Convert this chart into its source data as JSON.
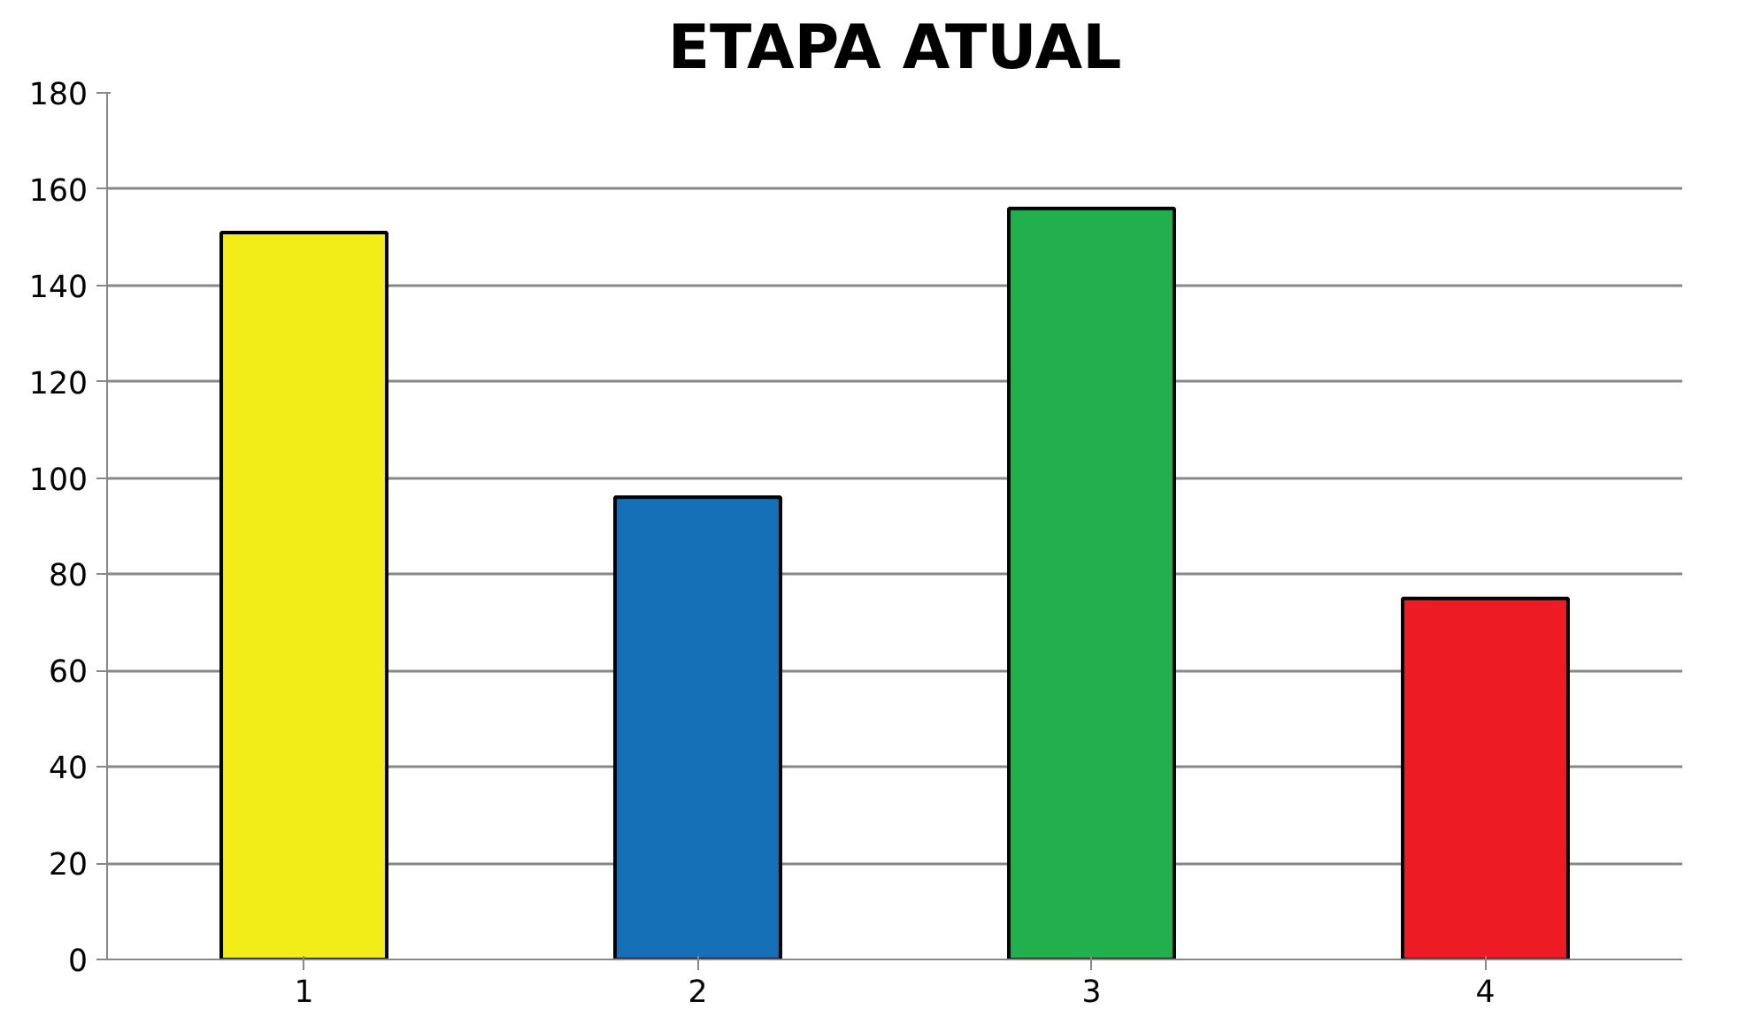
{
  "chart_data": {
    "type": "bar",
    "title": "ETAPA ATUAL",
    "categories": [
      "1",
      "2",
      "3",
      "4"
    ],
    "values": [
      151,
      96,
      156,
      75
    ],
    "colors": [
      "#f2ec18",
      "#1570b8",
      "#22b04f",
      "#ed1c24"
    ],
    "ylim": [
      0,
      180
    ],
    "yticks": [
      0,
      20,
      40,
      60,
      80,
      100,
      120,
      140,
      160,
      180
    ],
    "grid": "y"
  }
}
